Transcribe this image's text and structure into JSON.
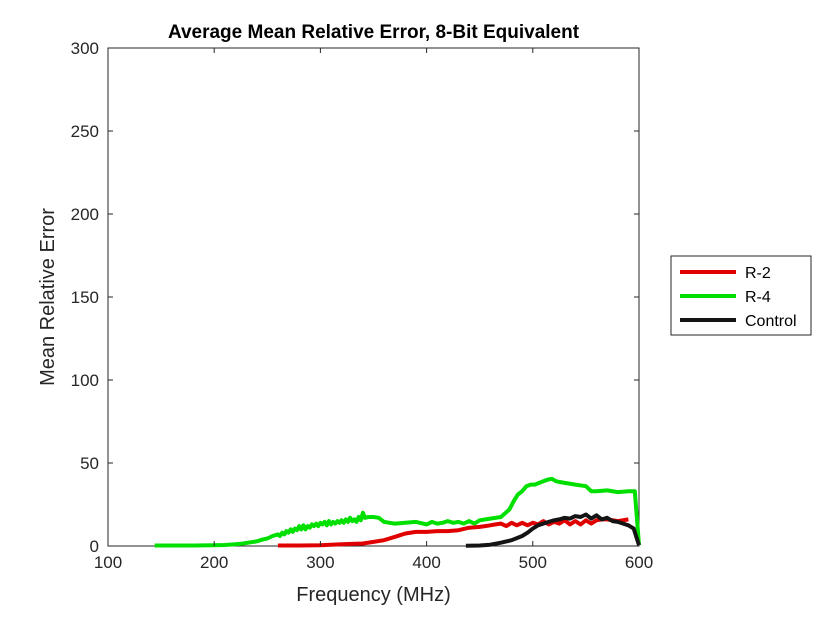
{
  "chart_data": {
    "type": "line",
    "title": "Average Mean Relative Error, 8-Bit Equivalent",
    "xlabel": "Frequency (MHz)",
    "ylabel": "Mean Relative Error",
    "xlim": [
      100,
      600
    ],
    "ylim": [
      0,
      300
    ],
    "xticks": [
      100,
      200,
      300,
      400,
      500,
      600
    ],
    "yticks": [
      0,
      50,
      100,
      150,
      200,
      250,
      300
    ],
    "grid": false,
    "legend_position": "outside-right",
    "series": [
      {
        "name": "R-2",
        "color": "#e00000",
        "x": [
          260,
          280,
          300,
          320,
          340,
          350,
          360,
          365,
          370,
          375,
          380,
          390,
          400,
          410,
          420,
          430,
          440,
          450,
          455,
          460,
          465,
          470,
          475,
          480,
          485,
          490,
          495,
          500,
          505,
          510,
          515,
          520,
          525,
          530,
          535,
          540,
          545,
          550,
          555,
          560,
          565,
          570,
          580,
          590
        ],
        "values": [
          0.3,
          0.3,
          0.5,
          1,
          1.5,
          2.5,
          3.5,
          4.5,
          5.5,
          6.5,
          7.5,
          8.5,
          8.5,
          9,
          9,
          9.5,
          11,
          11.5,
          12,
          12.5,
          13,
          13.5,
          12,
          14,
          12.5,
          14,
          12.5,
          14,
          13,
          15,
          13,
          14.5,
          13.5,
          15.5,
          13,
          15,
          13,
          15.5,
          13.5,
          15.5,
          16,
          16,
          15,
          16
        ]
      },
      {
        "name": "R-4",
        "color": "#00e000",
        "x": [
          144,
          160,
          180,
          200,
          210,
          220,
          225,
          230,
          235,
          240,
          245,
          250,
          255,
          260,
          262,
          264,
          266,
          268,
          270,
          272,
          274,
          276,
          278,
          280,
          282,
          284,
          286,
          288,
          290,
          292,
          294,
          296,
          298,
          300,
          302,
          304,
          306,
          308,
          310,
          312,
          314,
          316,
          318,
          320,
          322,
          324,
          326,
          328,
          330,
          332,
          334,
          336,
          338,
          340,
          342,
          345,
          350,
          355,
          360,
          365,
          370,
          380,
          390,
          400,
          405,
          410,
          415,
          420,
          425,
          430,
          435,
          440,
          445,
          450,
          460,
          470,
          478,
          482,
          486,
          490,
          494,
          498,
          502,
          506,
          510,
          514,
          518,
          522,
          526,
          530,
          540,
          550,
          555,
          560,
          570,
          580,
          590,
          594,
          596,
          600
        ],
        "values": [
          0.3,
          0.3,
          0.3,
          0.4,
          0.6,
          1,
          1.3,
          1.8,
          2.3,
          2.8,
          3.8,
          4.5,
          6,
          7,
          6,
          8,
          7,
          9,
          8,
          10,
          8.5,
          10.5,
          9.5,
          12,
          10,
          12.5,
          10,
          12,
          11,
          13,
          12,
          13.5,
          12,
          14,
          13,
          14.5,
          12.5,
          15,
          13,
          14.5,
          13.5,
          15,
          14,
          15.5,
          14,
          16,
          14.5,
          17,
          15,
          16,
          14.5,
          17.5,
          15.5,
          20,
          17,
          17.5,
          17.5,
          17,
          14.5,
          14,
          13.5,
          14,
          14.5,
          13,
          14.5,
          13.5,
          14,
          15,
          14,
          14.5,
          13.5,
          15,
          13.5,
          15.5,
          16.5,
          17.5,
          22,
          27,
          31,
          33,
          36,
          37,
          37,
          38,
          39,
          40,
          40.5,
          39,
          38.5,
          38,
          37,
          36,
          33,
          33,
          33.5,
          32.5,
          33,
          33,
          33,
          0.5
        ]
      },
      {
        "name": "Control",
        "color": "#141414",
        "x": [
          437,
          450,
          460,
          470,
          480,
          490,
          495,
          500,
          505,
          510,
          515,
          520,
          525,
          530,
          535,
          540,
          545,
          550,
          555,
          560,
          565,
          570,
          575,
          580,
          585,
          590,
          595,
          600
        ],
        "values": [
          0.2,
          0.3,
          0.8,
          2,
          3.5,
          6,
          8,
          10.5,
          12.5,
          13.5,
          14.5,
          15.5,
          16,
          17,
          16.5,
          18,
          17.5,
          19,
          16.5,
          18.5,
          16,
          17,
          15,
          14.5,
          13.5,
          12.5,
          10.5,
          0.5
        ]
      }
    ]
  }
}
